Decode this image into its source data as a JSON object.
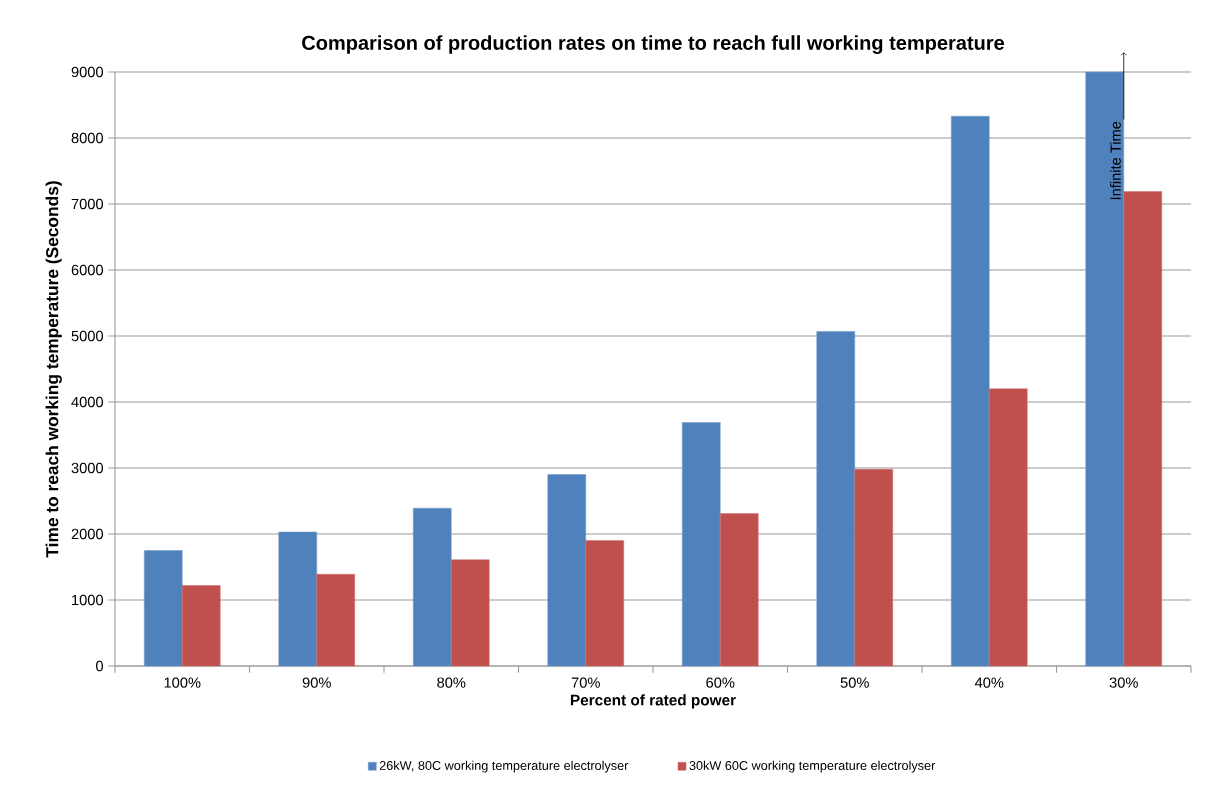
{
  "chart_data": {
    "type": "bar",
    "title": "Comparison of production rates on time to reach full working temperature",
    "xlabel": "Percent of rated power",
    "ylabel": "Time to reach working temperature (Seconds)",
    "categories": [
      "100%",
      "90%",
      "80%",
      "70%",
      "60%",
      "50%",
      "40%",
      "30%"
    ],
    "series": [
      {
        "name": "26kW, 80C working temperature electrolyser",
        "color": "#4f81bd",
        "values": [
          1750,
          2030,
          2390,
          2900,
          3690,
          5070,
          8330,
          9000
        ]
      },
      {
        "name": "30kW 60C working temperature electrolyser",
        "color": "#c0504d",
        "values": [
          1220,
          1390,
          1610,
          1900,
          2310,
          2980,
          4200,
          7190
        ]
      }
    ],
    "ylim": [
      0,
      9000
    ],
    "yticks": [
      0,
      1000,
      2000,
      3000,
      4000,
      5000,
      6000,
      7000,
      8000,
      9000
    ],
    "grid": "y",
    "legend": "bottom",
    "annotations": [
      "Infinite Time"
    ]
  }
}
